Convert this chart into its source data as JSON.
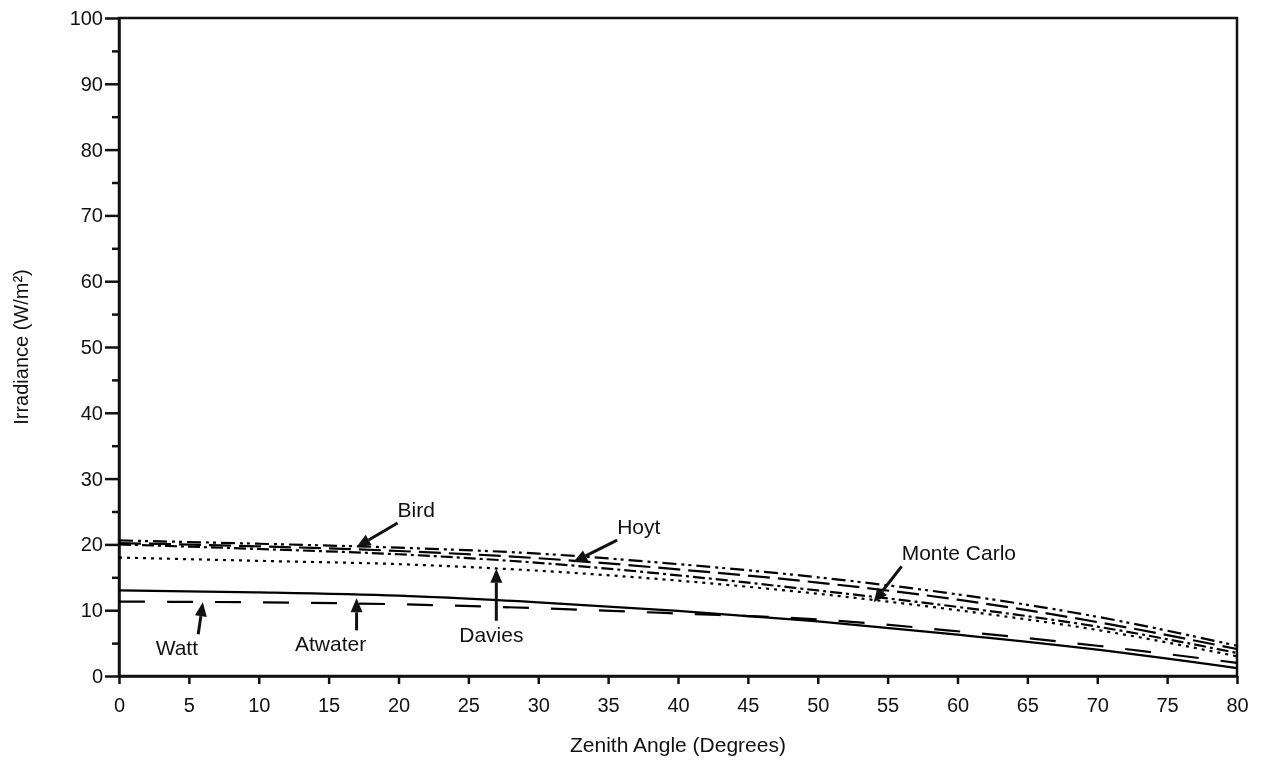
{
  "chart_data": {
    "type": "line",
    "xlabel": "Zenith Angle (Degrees)",
    "ylabel": "Irradiance (W/m²)",
    "x": [
      0,
      10,
      20,
      30,
      40,
      50,
      60,
      70,
      80
    ],
    "xlim": [
      0,
      80
    ],
    "xticks": [
      0,
      5,
      10,
      15,
      20,
      25,
      30,
      35,
      40,
      45,
      50,
      55,
      60,
      65,
      70,
      75,
      80
    ],
    "ylim": [
      0,
      100
    ],
    "yticks": [
      0,
      {
        "value": 5,
        "label": null
      },
      10,
      {
        "value": 15,
        "label": null
      },
      20,
      {
        "value": 25,
        "label": null
      },
      30,
      {
        "value": 35,
        "label": null
      },
      40,
      {
        "value": 45,
        "label": null
      },
      50,
      {
        "value": 55,
        "label": null
      },
      60,
      {
        "value": 65,
        "label": null
      },
      70,
      {
        "value": 75,
        "label": null
      },
      80,
      {
        "value": 85,
        "label": null
      },
      90,
      {
        "value": 95,
        "label": null
      },
      100
    ],
    "grid": false,
    "marker": "none",
    "series": [
      {
        "color": "#000000",
        "line_style": "dashed",
        "values": [
          20.6,
          20.1,
          19.5,
          18.6,
          17,
          15,
          12.4,
          9,
          4.6
        ]
      },
      {
        "color": "#000000",
        "line_style": "dashed",
        "values": [
          20.2,
          19.7,
          19,
          17.9,
          16.2,
          14.2,
          11.6,
          8.2,
          4.1
        ]
      },
      {
        "color": "#000000",
        "line_style": "dashed",
        "values": [
          20,
          19.3,
          18.5,
          17.2,
          15.3,
          13,
          10.5,
          7.5,
          3.5
        ]
      },
      {
        "color": "#000000",
        "line_style": "dotted",
        "values": [
          18,
          17.5,
          17,
          16,
          14.5,
          12.5,
          10,
          7,
          3
        ]
      },
      {
        "color": "#000000",
        "line_style": "solid",
        "values": [
          13,
          12.7,
          12.2,
          11.2,
          9.9,
          8.3,
          6.3,
          4,
          1.2
        ]
      },
      {
        "color": "#000000",
        "line_style": "dashed",
        "values": [
          11.3,
          11.2,
          10.9,
          10.3,
          9.5,
          8.6,
          6.8,
          4.6,
          2
        ]
      }
    ],
    "annotations": [
      {
        "text": "Bird",
        "x": 17,
        "y": 19.6
      },
      {
        "text": "Hoyt",
        "x": 32.5,
        "y": 17.3
      },
      {
        "text": "Monte Carlo",
        "x": 54,
        "y": 11.2
      },
      {
        "text": "Watt",
        "x": 6,
        "y": 11.2
      },
      {
        "text": "Atwater",
        "x": 17,
        "y": 11.8
      },
      {
        "text": "Davies",
        "x": 27,
        "y": 16.3
      }
    ]
  }
}
